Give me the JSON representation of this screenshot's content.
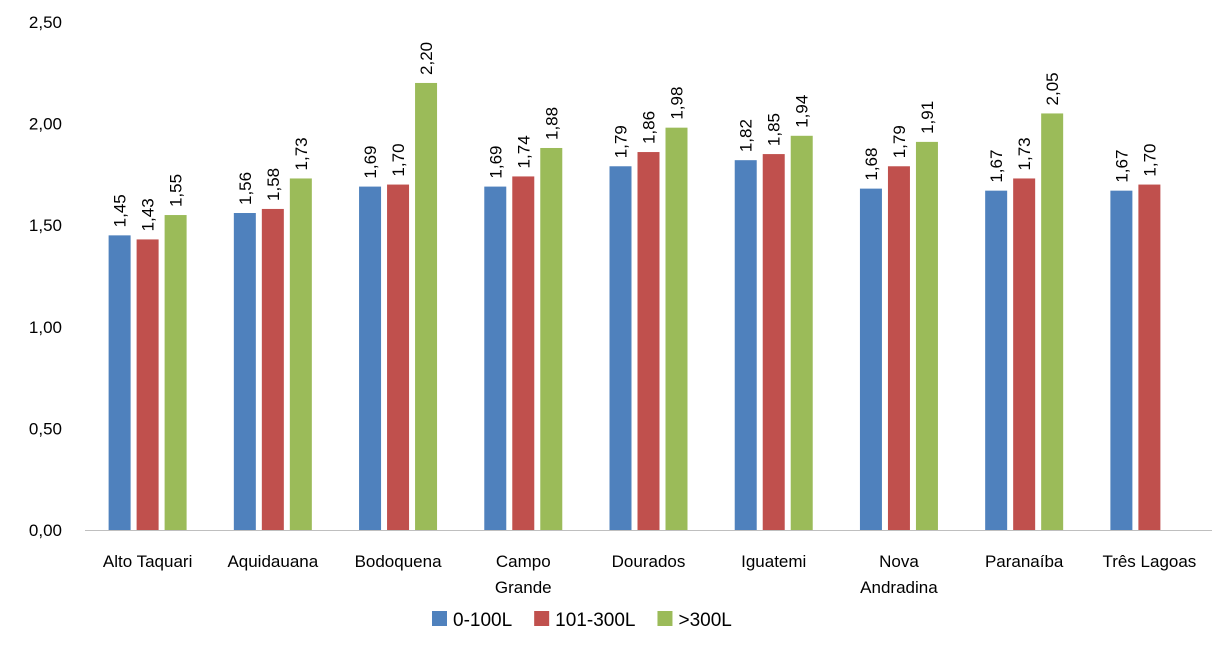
{
  "chart_data": {
    "type": "bar",
    "categories": [
      [
        "Alto Taquari"
      ],
      [
        "Aquidauana"
      ],
      [
        "Bodoquena"
      ],
      [
        "Campo",
        "Grande"
      ],
      [
        "Dourados"
      ],
      [
        "Iguatemi"
      ],
      [
        "Nova",
        "Andradina"
      ],
      [
        "Paranaíba"
      ],
      [
        "Três Lagoas"
      ]
    ],
    "series": [
      {
        "name": "0-100L",
        "color": "#4f81bd",
        "values": [
          1.45,
          1.56,
          1.69,
          1.69,
          1.79,
          1.82,
          1.68,
          1.67,
          1.67
        ],
        "labels": [
          "1,45",
          "1,56",
          "1,69",
          "1,69",
          "1,79",
          "1,82",
          "1,68",
          "1,67",
          "1,67"
        ]
      },
      {
        "name": "101-300L",
        "color": "#c0504d",
        "values": [
          1.43,
          1.58,
          1.7,
          1.74,
          1.86,
          1.85,
          1.79,
          1.73,
          1.7
        ],
        "labels": [
          "1,43",
          "1,58",
          "1,70",
          "1,74",
          "1,86",
          "1,85",
          "1,79",
          "1,73",
          "1,70"
        ]
      },
      {
        "name": ">300L",
        "color": "#9bbb59",
        "values": [
          1.55,
          1.73,
          2.2,
          1.88,
          1.98,
          1.94,
          1.91,
          2.05,
          null
        ],
        "labels": [
          "1,55",
          "1,73",
          "2,20",
          "1,88",
          "1,98",
          "1,94",
          "1,91",
          "2,05",
          null
        ]
      }
    ],
    "yticks": [
      "0,00",
      "0,50",
      "1,00",
      "1,50",
      "2,00",
      "2,50"
    ],
    "ylim": [
      0,
      2.5
    ],
    "grid": false,
    "legend": "bottom-center"
  }
}
